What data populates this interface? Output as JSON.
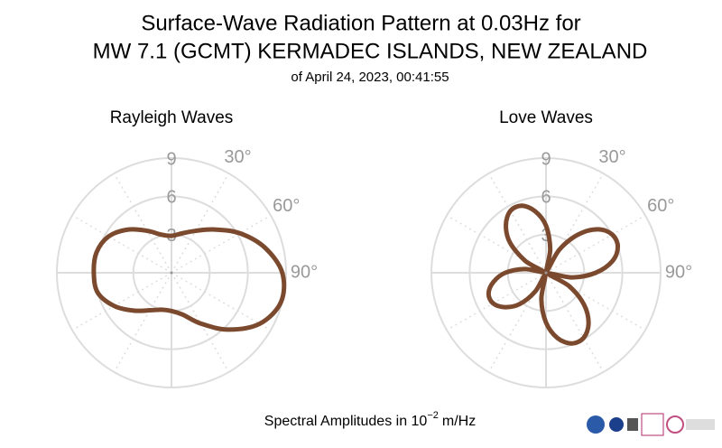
{
  "header": {
    "title_line1": "Surface-Wave Radiation Pattern at 0.03Hz for",
    "title_line2": "MW 7.1 (GCMT) KERMADEC ISLANDS, NEW ZEALAND",
    "subtitle": "of April 24, 2023, 00:41:55"
  },
  "footer": {
    "text": "Spectral Amplitudes in 10",
    "exponent": "−2",
    "unit": "m/Hz"
  },
  "chart_data": [
    {
      "type": "polar",
      "title": "Rayleigh Waves",
      "color": "#7b4a2e",
      "theta": [
        0,
        15,
        30,
        45,
        60,
        75,
        90,
        105,
        120,
        135,
        150,
        165,
        180,
        195,
        210,
        225,
        240,
        255,
        270,
        285,
        300,
        315,
        330,
        345
      ],
      "values": [
        2.9,
        3.2,
        3.8,
        4.8,
        6.2,
        7.6,
        8.7,
        8.9,
        8.0,
        6.3,
        4.6,
        3.4,
        3.0,
        3.0,
        3.4,
        4.2,
        5.2,
        6.0,
        6.1,
        6.1,
        5.7,
        4.8,
        3.8,
        3.1
      ],
      "rlim": [
        0,
        9
      ],
      "rticks": [
        3,
        6,
        9
      ],
      "thetaticks": [
        {
          "value": 30,
          "label": "30°"
        },
        {
          "value": 60,
          "label": "60°"
        },
        {
          "value": 90,
          "label": "90°"
        }
      ]
    },
    {
      "type": "polar",
      "title": "Love Waves",
      "color": "#7b4a2e",
      "theta": [
        0,
        10,
        20,
        30,
        40,
        50,
        60,
        70,
        80,
        90,
        100,
        110,
        120,
        130,
        140,
        150,
        160,
        170,
        180,
        190,
        200,
        210,
        220,
        230,
        240,
        250,
        260,
        270,
        280,
        290,
        300,
        310,
        320,
        330,
        340,
        350
      ],
      "values": [
        3.7,
        1.9,
        0.2,
        2.1,
        3.9,
        5.3,
        6.0,
        6.0,
        5.3,
        3.9,
        2.1,
        0.2,
        2.1,
        3.9,
        5.2,
        5.9,
        5.9,
        5.2,
        3.9,
        2.1,
        0.2,
        1.7,
        3.2,
        4.2,
        4.8,
        4.8,
        4.2,
        3.2,
        1.7,
        0.2,
        1.9,
        3.7,
        4.9,
        5.6,
        5.6,
        4.9
      ],
      "rlim": [
        0,
        9
      ],
      "rticks": [
        3,
        6,
        9
      ],
      "thetaticks": [
        {
          "value": 30,
          "label": "30°"
        },
        {
          "value": 60,
          "label": "60°"
        },
        {
          "value": 90,
          "label": "90°"
        }
      ]
    }
  ]
}
